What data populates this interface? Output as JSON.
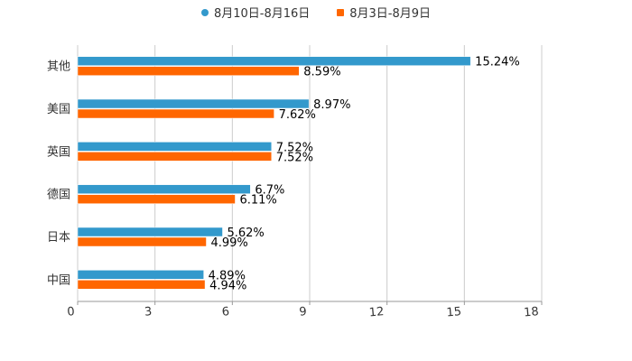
{
  "legend": [
    {
      "label": "8月10日-8月16日",
      "color": "#3399cc",
      "marker": "circle"
    },
    {
      "label": "8月3日-8月9日",
      "color": "#ff6600",
      "marker": "square"
    }
  ],
  "chart_data": {
    "type": "bar",
    "orientation": "horizontal",
    "title": "",
    "xlabel": "",
    "ylabel": "",
    "categories": [
      "其他",
      "美国",
      "英国",
      "德国",
      "日本",
      "中国"
    ],
    "series": [
      {
        "name": "8月10日-8月16日",
        "color": "#3399cc",
        "values": [
          15.24,
          8.97,
          7.52,
          6.7,
          5.62,
          4.89
        ],
        "labels": [
          "15.24%",
          "8.97%",
          "7.52%",
          "6.7%",
          "5.62%",
          "4.89%"
        ]
      },
      {
        "name": "8月3日-8月9日",
        "color": "#ff6600",
        "values": [
          8.59,
          7.62,
          7.52,
          6.11,
          4.99,
          4.94
        ],
        "labels": [
          "8.59%",
          "7.62%",
          "7.52%",
          "6.11%",
          "4.99%",
          "4.94%"
        ]
      }
    ],
    "xlim": [
      0,
      18
    ],
    "xticks": [
      0,
      3,
      6,
      9,
      12,
      15,
      18
    ],
    "grid": "vertical",
    "legend_position": "top"
  }
}
